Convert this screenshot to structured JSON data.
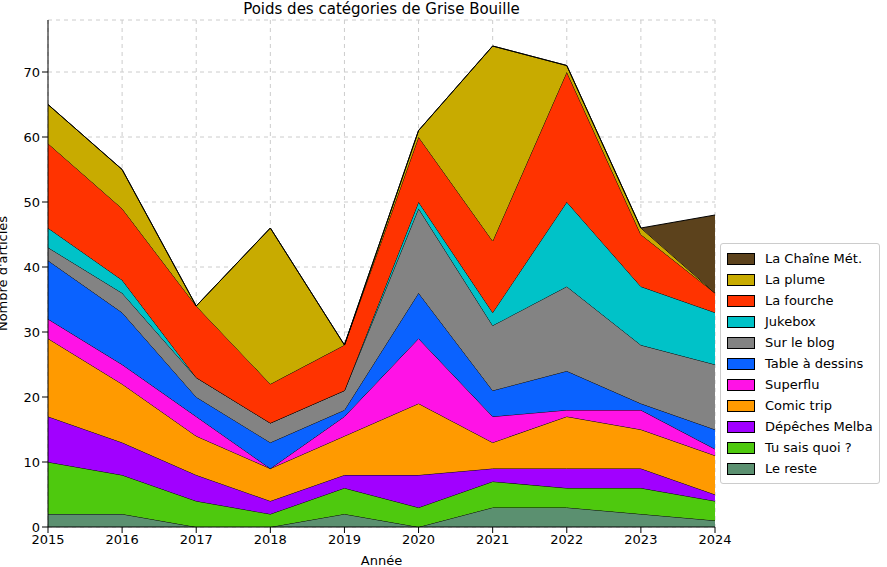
{
  "chart_data": {
    "type": "area",
    "title": "Poids des catégories de Grise Bouille",
    "x_label": "Année",
    "y_label": "Nombre d'articles",
    "x": [
      2015,
      2016,
      2017,
      2018,
      2019,
      2020,
      2021,
      2022,
      2023,
      2024
    ],
    "xlim": [
      2015,
      2024
    ],
    "xticks": [
      2015,
      2016,
      2017,
      2018,
      2019,
      2020,
      2021,
      2022,
      2023,
      2024
    ],
    "ylim": [
      0,
      78
    ],
    "yticks": [
      0,
      10,
      20,
      30,
      40,
      50,
      60,
      70
    ],
    "grid": true,
    "stacked": true,
    "legend": "right",
    "series": [
      {
        "name": "Le reste",
        "color": "#5b9070",
        "values": [
          2,
          2,
          0,
          0,
          2,
          0,
          3,
          3,
          2,
          1
        ]
      },
      {
        "name": "Tu sais quoi ?",
        "color": "#4ec90e",
        "values": [
          8,
          6,
          4,
          2,
          4,
          3,
          4,
          3,
          4,
          3
        ]
      },
      {
        "name": "Dépêches Melba",
        "color": "#a100ff",
        "values": [
          7,
          5,
          4,
          2,
          2,
          5,
          2,
          3,
          3,
          1
        ]
      },
      {
        "name": "Comic trip",
        "color": "#ff9a00",
        "values": [
          12,
          9,
          6,
          5,
          6,
          11,
          4,
          8,
          6,
          6
        ]
      },
      {
        "name": "Superflu",
        "color": "#ff12e6",
        "values": [
          3,
          3,
          3,
          0,
          3,
          10,
          4,
          1,
          3,
          1
        ]
      },
      {
        "name": "Table à dessins",
        "color": "#0a62ff",
        "values": [
          9,
          8,
          3,
          4,
          1,
          7,
          4,
          6,
          1,
          3
        ]
      },
      {
        "name": "Sur le blog",
        "color": "#838383",
        "values": [
          2,
          3,
          3,
          3,
          3,
          13,
          10,
          13,
          9,
          10
        ]
      },
      {
        "name": "Jukebox",
        "color": "#00c2c8",
        "values": [
          3,
          2,
          0,
          0,
          0,
          1,
          2,
          13,
          9,
          8
        ]
      },
      {
        "name": "La fourche",
        "color": "#ff3300",
        "values": [
          13,
          11,
          11,
          6,
          7,
          10,
          11,
          20,
          8,
          3
        ]
      },
      {
        "name": "La plume",
        "color": "#c8ab00",
        "values": [
          6,
          6,
          0,
          24,
          0,
          1,
          30,
          1,
          1,
          0
        ]
      },
      {
        "name": "La Chaîne Mét.",
        "color": "#5c421c",
        "values": [
          0,
          0,
          0,
          0,
          0,
          0,
          0,
          0,
          0,
          12
        ]
      }
    ]
  }
}
